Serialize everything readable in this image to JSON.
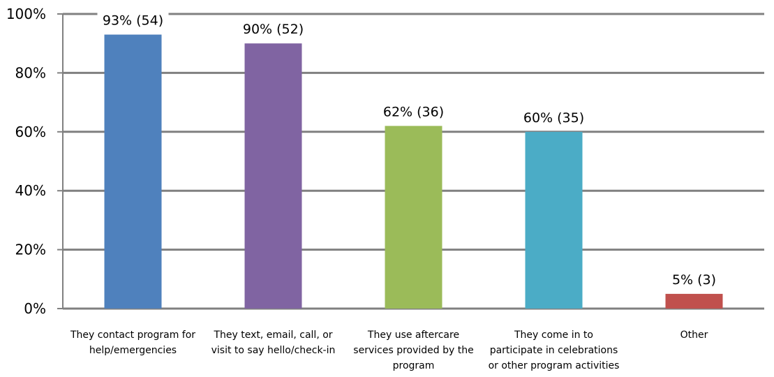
{
  "chart_data": {
    "type": "bar",
    "categories": [
      [
        "They contact program  for",
        "help/emergencies"
      ],
      [
        "They text, email, call, or",
        "visit to say hello/check-in"
      ],
      [
        "They use aftercare",
        "services provided by the",
        "program"
      ],
      [
        "They come in to",
        "participate in celebrations",
        "or other program activities"
      ],
      [
        "Other"
      ]
    ],
    "values": [
      93,
      90,
      62,
      60,
      5
    ],
    "data_labels": [
      "93% (54)",
      "90% (52)",
      "62% (36)",
      "60%  (35)",
      "5% (3)"
    ],
    "bar_colors": [
      "#4F81BD",
      "#8064A2",
      "#9BBB59",
      "#4BACC6",
      "#C0504D"
    ],
    "ylim": [
      0,
      100
    ],
    "yticks": [
      0,
      20,
      40,
      60,
      80,
      100
    ],
    "ytick_labels": [
      "0%",
      "20%",
      "40%",
      "60%",
      "80%",
      "100%"
    ],
    "grid": true,
    "grid_color": "#808080",
    "title": "",
    "xlabel": "",
    "ylabel": ""
  }
}
